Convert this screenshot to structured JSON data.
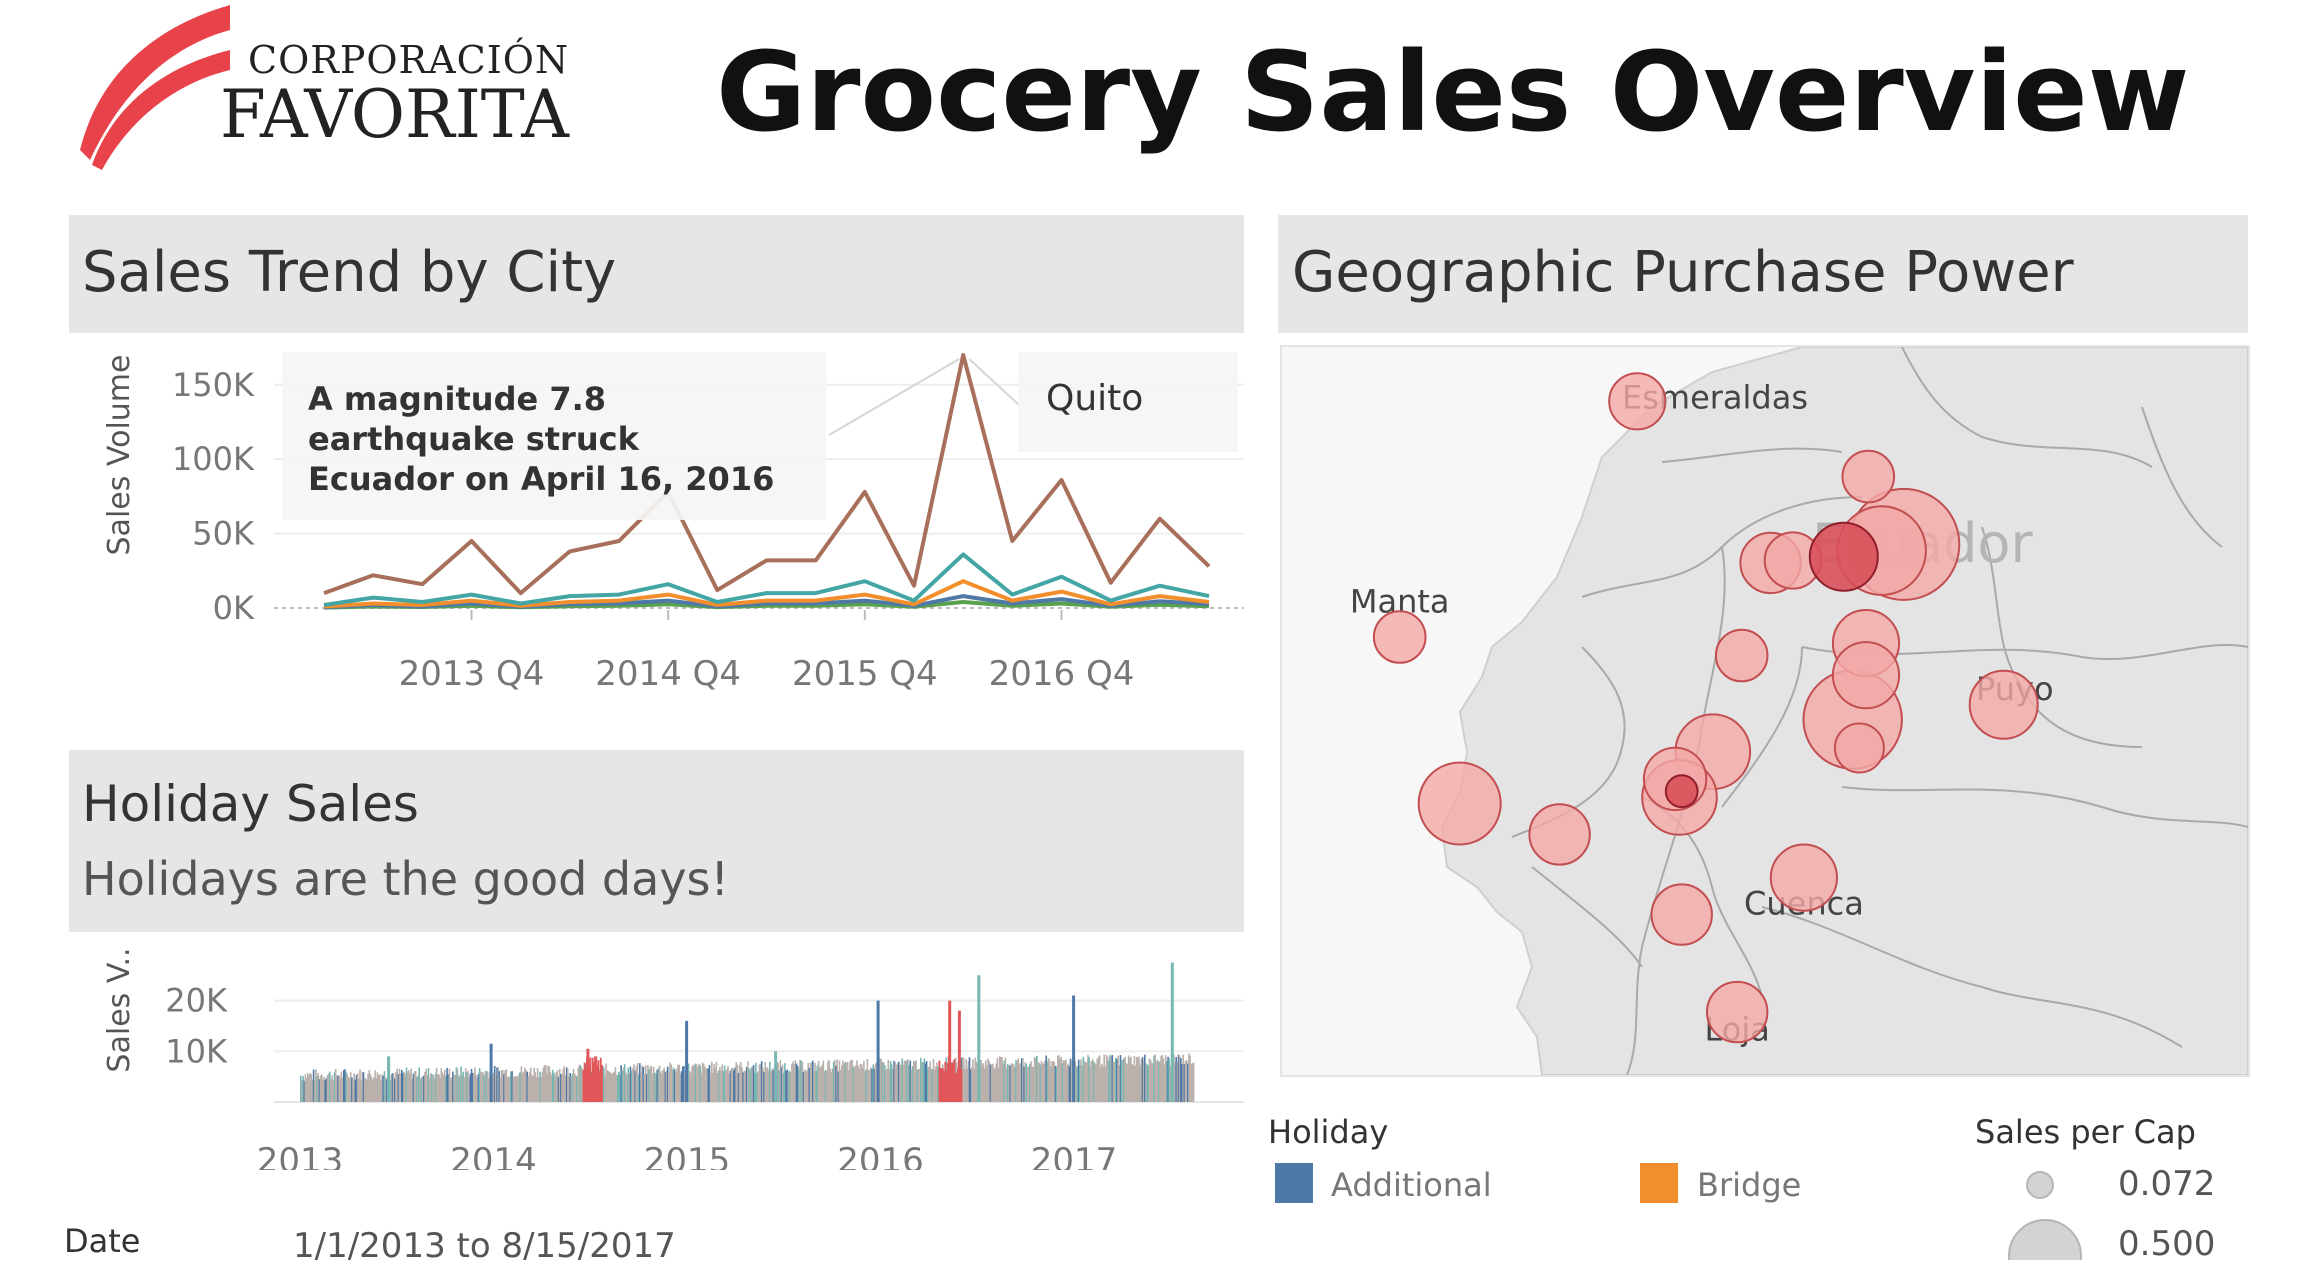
{
  "brand": {
    "line1": "CORPORACIÓN",
    "line2": "FAVORITA",
    "accent": "#e8434a"
  },
  "header": {
    "title": "Grocery Sales Overview"
  },
  "trend_panel": {
    "title": "Sales Trend by City",
    "annotation": [
      "A magnitude 7.8",
      "earthquake struck",
      "Ecuador on April 16, 2016"
    ],
    "callout": "Quito"
  },
  "holiday_panel": {
    "title": "Holiday Sales",
    "subtitle": "Holidays are the good days!"
  },
  "map_panel": {
    "title": "Geographic Purchase Power",
    "country_label": "Ecuador",
    "cities": [
      "Esmeraldas",
      "Manta",
      "Puyo",
      "Cuenca",
      "Loja"
    ]
  },
  "filter": {
    "label": "Date",
    "value": "1/1/2013 to 8/15/2017"
  },
  "legend_holiday": {
    "title": "Holiday",
    "items": [
      {
        "label": "Additional",
        "color": "#4e79a7"
      },
      {
        "label": "Bridge",
        "color": "#f28e2b"
      }
    ]
  },
  "legend_size": {
    "title": "Sales per Cap",
    "items": [
      "0.072",
      "0.500"
    ]
  },
  "chart_data": [
    {
      "type": "line",
      "ylabel": "Sales Volume",
      "ylim": [
        0,
        170000
      ],
      "yticks": [
        "0K",
        "50K",
        "100K",
        "150K"
      ],
      "xticks": [
        "2013 Q4",
        "2014 Q4",
        "2015 Q4",
        "2016 Q4"
      ],
      "x": [
        "2013 Q1",
        "2013 Q2",
        "2013 Q3",
        "2013 Q4",
        "2014 Q1",
        "2014 Q2",
        "2014 Q3",
        "2014 Q4",
        "2015 Q1",
        "2015 Q2",
        "2015 Q3",
        "2015 Q4",
        "2016 Q1",
        "2016 Q2",
        "2016 Q3",
        "2016 Q4",
        "2017 Q1",
        "2017 Q2",
        "2017 Q3"
      ],
      "series": [
        {
          "name": "Quito",
          "color": "#a86f5b",
          "values": [
            10000,
            22000,
            16000,
            45000,
            10000,
            38000,
            45000,
            78000,
            12000,
            32000,
            32000,
            78000,
            15000,
            170000,
            45000,
            86000,
            17000,
            60000,
            28000
          ]
        },
        {
          "color": "#44a5a5",
          "values": [
            2000,
            7000,
            4000,
            9000,
            3000,
            8000,
            9000,
            16000,
            4000,
            10000,
            10000,
            18000,
            5000,
            36000,
            9000,
            21000,
            5000,
            15000,
            8000
          ]
        },
        {
          "color": "#f28e2b",
          "values": [
            1000,
            3000,
            2000,
            5000,
            1500,
            4000,
            5000,
            9000,
            2000,
            5000,
            5000,
            9000,
            2500,
            18000,
            5000,
            11000,
            2500,
            8000,
            4000
          ]
        },
        {
          "color": "#4e79a7",
          "values": [
            500,
            2000,
            1000,
            3000,
            800,
            2500,
            3000,
            5000,
            1000,
            3000,
            3000,
            5000,
            1500,
            8000,
            3000,
            6000,
            1500,
            4500,
            2500
          ]
        },
        {
          "color": "#59a14f",
          "values": [
            300,
            1000,
            700,
            1500,
            500,
            1200,
            1500,
            2500,
            600,
            1500,
            1500,
            2500,
            800,
            4000,
            1500,
            3000,
            800,
            2200,
            1200
          ]
        }
      ]
    },
    {
      "type": "bar",
      "ylabel": "Sales V..",
      "ylim": [
        0,
        28000
      ],
      "yticks": [
        "10K",
        "20K"
      ],
      "xticks": [
        "2013",
        "2014",
        "2015",
        "2016",
        "2017"
      ],
      "colors": {
        "base": "#bab0ac",
        "Additional": "#4e79a7",
        "Bridge": "#f28e2b",
        "red": "#e15759",
        "teal": "#76b7b2"
      },
      "spikes": [
        {
          "x": 2013.45,
          "value": 9000,
          "color": "teal"
        },
        {
          "x": 2013.98,
          "value": 11500,
          "color": "Additional"
        },
        {
          "x": 2014.48,
          "value": 10500,
          "color": "red"
        },
        {
          "x": 2014.52,
          "value": 9000,
          "color": "red"
        },
        {
          "x": 2014.99,
          "value": 16000,
          "color": "Additional"
        },
        {
          "x": 2015.45,
          "value": 10000,
          "color": "teal"
        },
        {
          "x": 2015.98,
          "value": 20000,
          "color": "Additional"
        },
        {
          "x": 2016.35,
          "value": 20000,
          "color": "red"
        },
        {
          "x": 2016.4,
          "value": 18000,
          "color": "red"
        },
        {
          "x": 2016.5,
          "value": 25000,
          "color": "teal"
        },
        {
          "x": 2016.99,
          "value": 21000,
          "color": "Additional"
        },
        {
          "x": 2017.5,
          "value": 27500,
          "color": "teal"
        }
      ]
    },
    {
      "type": "scatter",
      "series": [
        {
          "name": "Sales per Cap",
          "color": "#f4a9a8",
          "points": [
            {
              "lon": -79.65,
              "lat": 0.96,
              "value": 0.1
            },
            {
              "lon": -78.45,
              "lat": -0.2,
              "value": 0.5
            },
            {
              "lon": -78.55,
              "lat": -0.25,
              "value": 0.3
            },
            {
              "lon": -79.05,
              "lat": -0.35,
              "value": 0.12
            },
            {
              "lon": -78.95,
              "lat": -0.33,
              "value": 0.1
            },
            {
              "lon": -78.61,
              "lat": 0.35,
              "value": 0.08
            },
            {
              "lon": -80.72,
              "lat": -0.95,
              "value": 0.08
            },
            {
              "lon": -79.18,
              "lat": -1.1,
              "value": 0.08
            },
            {
              "lon": -78.62,
              "lat": -1.0,
              "value": 0.15
            },
            {
              "lon": -78.62,
              "lat": -1.26,
              "value": 0.15
            },
            {
              "lon": -78.68,
              "lat": -1.62,
              "value": 0.38
            },
            {
              "lon": -78.0,
              "lat": -1.5,
              "value": 0.16
            },
            {
              "lon": -78.65,
              "lat": -1.85,
              "value": 0.07
            },
            {
              "lon": -79.31,
              "lat": -1.88,
              "value": 0.2
            },
            {
              "lon": -79.48,
              "lat": -2.1,
              "value": 0.13
            },
            {
              "lon": -79.46,
              "lat": -2.25,
              "value": 0.2
            },
            {
              "lon": -80.45,
              "lat": -2.3,
              "value": 0.25
            },
            {
              "lon": -80.0,
              "lat": -2.55,
              "value": 0.12
            },
            {
              "lon": -78.9,
              "lat": -2.9,
              "value": 0.15
            },
            {
              "lon": -79.45,
              "lat": -3.2,
              "value": 0.12
            },
            {
              "lon": -79.2,
              "lat": -3.99,
              "value": 0.12
            }
          ]
        },
        {
          "name": "Highlighted",
          "color": "#d9505a",
          "points": [
            {
              "lon": -78.72,
              "lat": -0.3,
              "value": 0.16
            },
            {
              "lon": -79.45,
              "lat": -2.2,
              "value": 0.02
            }
          ]
        }
      ]
    }
  ]
}
